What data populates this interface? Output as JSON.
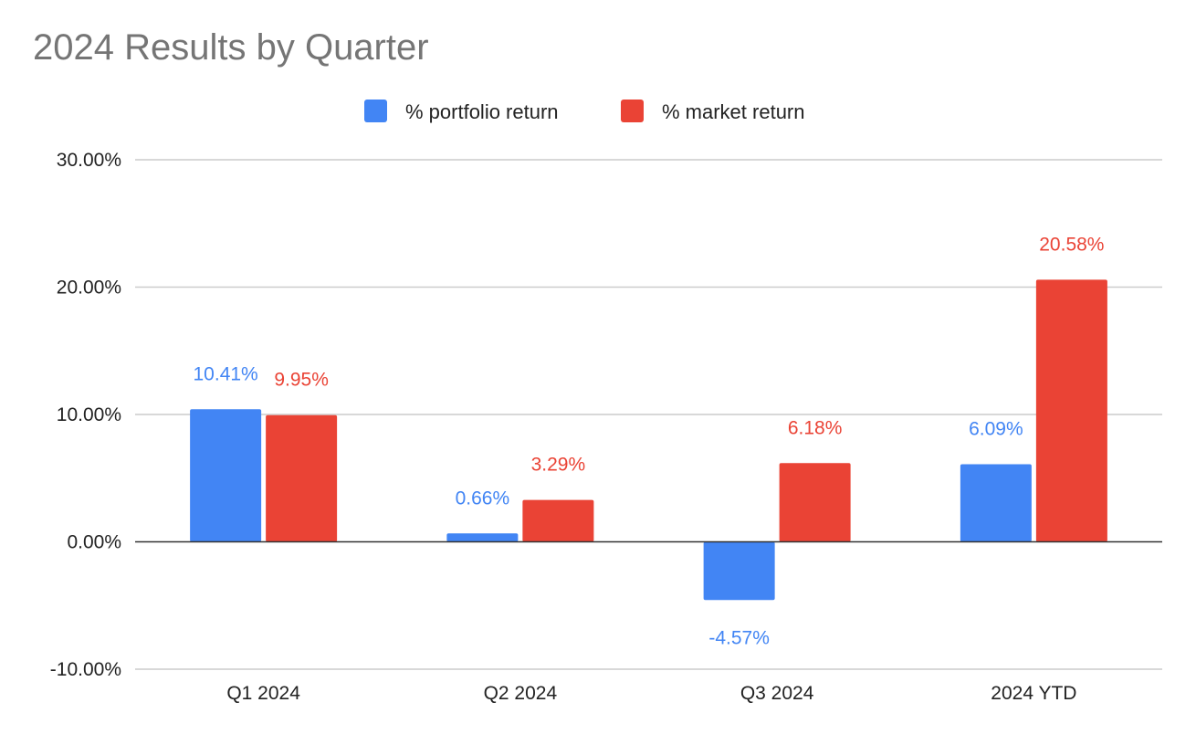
{
  "chart_data": {
    "type": "bar",
    "title": "2024 Results by Quarter",
    "xlabel": "",
    "ylabel": "",
    "categories": [
      "Q1 2024",
      "Q2 2024",
      "Q3 2024",
      "2024 YTD"
    ],
    "ylim": [
      -10,
      30
    ],
    "yticks": [
      30,
      20,
      10,
      0,
      -10
    ],
    "ytick_labels": [
      "30.00%",
      "20.00%",
      "10.00%",
      "0.00%",
      "-10.00%"
    ],
    "grid": true,
    "legend_position": "top-center",
    "series": [
      {
        "name": "% portfolio return",
        "color": "#4285f4",
        "values": [
          10.41,
          0.66,
          -4.57,
          6.09
        ],
        "labels": [
          "10.41%",
          "0.66%",
          "-4.57%",
          "6.09%"
        ]
      },
      {
        "name": "% market return",
        "color": "#ea4335",
        "values": [
          9.95,
          3.29,
          6.18,
          20.58
        ],
        "labels": [
          "9.95%",
          "3.29%",
          "6.18%",
          "20.58%"
        ]
      }
    ]
  }
}
